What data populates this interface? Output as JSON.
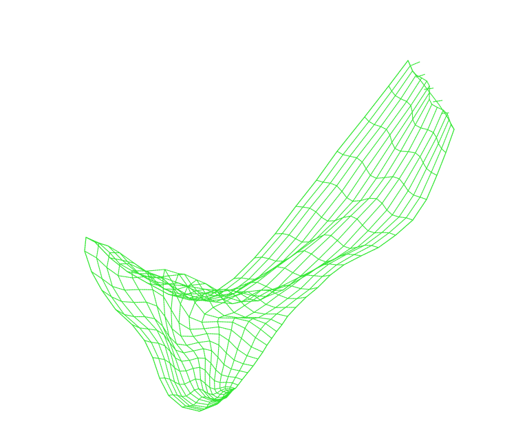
{
  "viewport": {
    "background": "#ffffff",
    "content": "wireframe-mesh",
    "subject": "foot-and-lower-leg",
    "render_mode": "wireframe",
    "line_style": "dotted"
  },
  "mesh": {
    "color": "#33e633",
    "rings": 30,
    "segments": 16
  }
}
